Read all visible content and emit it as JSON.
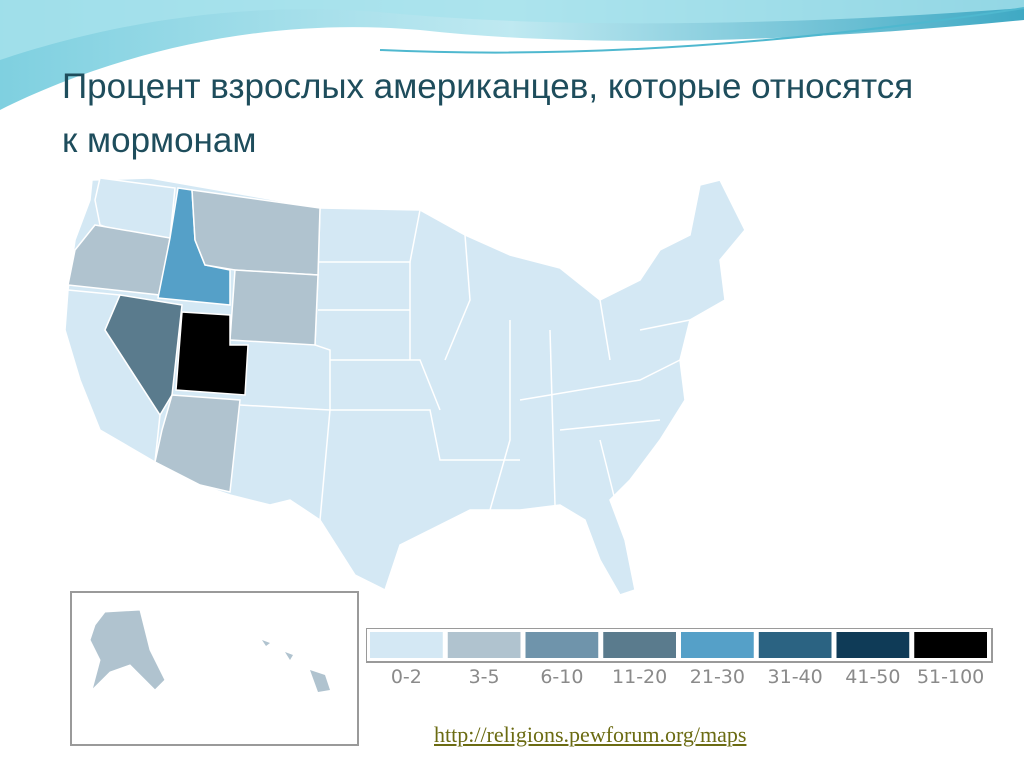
{
  "title": "Процент взрослых американцев, которые относятся к мормонам",
  "legend": {
    "items": [
      {
        "label": "0-2",
        "color": "#d4e8f4"
      },
      {
        "label": "3-5",
        "color": "#b0c3cf"
      },
      {
        "label": "6-10",
        "color": "#6f94ab"
      },
      {
        "label": "11-20",
        "color": "#5a7b8d"
      },
      {
        "label": "21-30",
        "color": "#55a0c8"
      },
      {
        "label": "31-40",
        "color": "#2b6382"
      },
      {
        "label": "41-50",
        "color": "#0f3b57"
      },
      {
        "label": "51-100",
        "color": "#000000"
      }
    ]
  },
  "source": "http://religions.pewforum.org/maps"
}
